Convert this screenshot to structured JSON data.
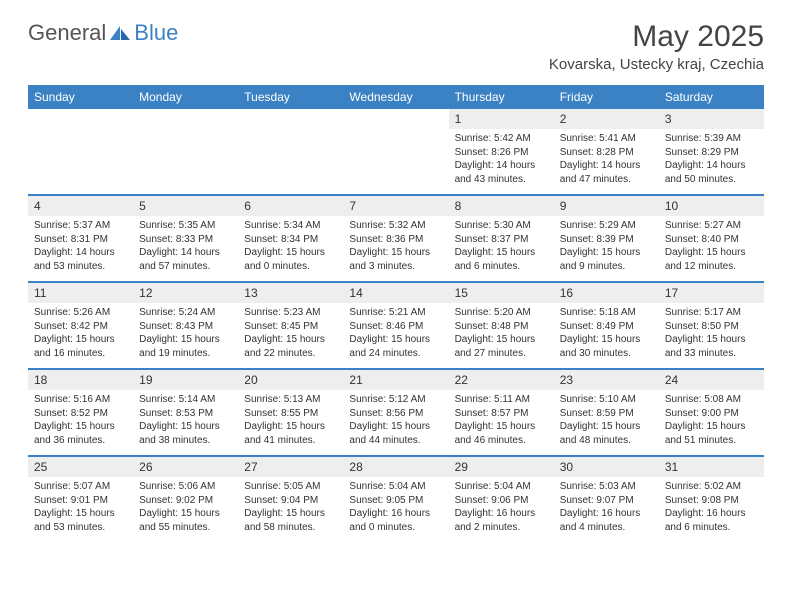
{
  "brand": {
    "part1": "General",
    "part2": "Blue"
  },
  "title": "May 2025",
  "location": "Kovarska, Ustecky kraj, Czechia",
  "colors": {
    "header_bg": "#3b82c4",
    "header_text": "#ffffff",
    "daynum_bg": "#eeeeee",
    "rule": "#3b82c4",
    "text": "#333333",
    "background": "#ffffff"
  },
  "typography": {
    "title_fontsize": 30,
    "location_fontsize": 15,
    "dayhead_fontsize": 12,
    "daynum_fontsize": 12,
    "detail_fontsize": 10
  },
  "day_headers": [
    "Sunday",
    "Monday",
    "Tuesday",
    "Wednesday",
    "Thursday",
    "Friday",
    "Saturday"
  ],
  "weeks": [
    [
      null,
      null,
      null,
      null,
      {
        "n": "1",
        "sr": "5:42 AM",
        "ss": "8:26 PM",
        "dl": "14 hours and 43 minutes."
      },
      {
        "n": "2",
        "sr": "5:41 AM",
        "ss": "8:28 PM",
        "dl": "14 hours and 47 minutes."
      },
      {
        "n": "3",
        "sr": "5:39 AM",
        "ss": "8:29 PM",
        "dl": "14 hours and 50 minutes."
      }
    ],
    [
      {
        "n": "4",
        "sr": "5:37 AM",
        "ss": "8:31 PM",
        "dl": "14 hours and 53 minutes."
      },
      {
        "n": "5",
        "sr": "5:35 AM",
        "ss": "8:33 PM",
        "dl": "14 hours and 57 minutes."
      },
      {
        "n": "6",
        "sr": "5:34 AM",
        "ss": "8:34 PM",
        "dl": "15 hours and 0 minutes."
      },
      {
        "n": "7",
        "sr": "5:32 AM",
        "ss": "8:36 PM",
        "dl": "15 hours and 3 minutes."
      },
      {
        "n": "8",
        "sr": "5:30 AM",
        "ss": "8:37 PM",
        "dl": "15 hours and 6 minutes."
      },
      {
        "n": "9",
        "sr": "5:29 AM",
        "ss": "8:39 PM",
        "dl": "15 hours and 9 minutes."
      },
      {
        "n": "10",
        "sr": "5:27 AM",
        "ss": "8:40 PM",
        "dl": "15 hours and 12 minutes."
      }
    ],
    [
      {
        "n": "11",
        "sr": "5:26 AM",
        "ss": "8:42 PM",
        "dl": "15 hours and 16 minutes."
      },
      {
        "n": "12",
        "sr": "5:24 AM",
        "ss": "8:43 PM",
        "dl": "15 hours and 19 minutes."
      },
      {
        "n": "13",
        "sr": "5:23 AM",
        "ss": "8:45 PM",
        "dl": "15 hours and 22 minutes."
      },
      {
        "n": "14",
        "sr": "5:21 AM",
        "ss": "8:46 PM",
        "dl": "15 hours and 24 minutes."
      },
      {
        "n": "15",
        "sr": "5:20 AM",
        "ss": "8:48 PM",
        "dl": "15 hours and 27 minutes."
      },
      {
        "n": "16",
        "sr": "5:18 AM",
        "ss": "8:49 PM",
        "dl": "15 hours and 30 minutes."
      },
      {
        "n": "17",
        "sr": "5:17 AM",
        "ss": "8:50 PM",
        "dl": "15 hours and 33 minutes."
      }
    ],
    [
      {
        "n": "18",
        "sr": "5:16 AM",
        "ss": "8:52 PM",
        "dl": "15 hours and 36 minutes."
      },
      {
        "n": "19",
        "sr": "5:14 AM",
        "ss": "8:53 PM",
        "dl": "15 hours and 38 minutes."
      },
      {
        "n": "20",
        "sr": "5:13 AM",
        "ss": "8:55 PM",
        "dl": "15 hours and 41 minutes."
      },
      {
        "n": "21",
        "sr": "5:12 AM",
        "ss": "8:56 PM",
        "dl": "15 hours and 44 minutes."
      },
      {
        "n": "22",
        "sr": "5:11 AM",
        "ss": "8:57 PM",
        "dl": "15 hours and 46 minutes."
      },
      {
        "n": "23",
        "sr": "5:10 AM",
        "ss": "8:59 PM",
        "dl": "15 hours and 48 minutes."
      },
      {
        "n": "24",
        "sr": "5:08 AM",
        "ss": "9:00 PM",
        "dl": "15 hours and 51 minutes."
      }
    ],
    [
      {
        "n": "25",
        "sr": "5:07 AM",
        "ss": "9:01 PM",
        "dl": "15 hours and 53 minutes."
      },
      {
        "n": "26",
        "sr": "5:06 AM",
        "ss": "9:02 PM",
        "dl": "15 hours and 55 minutes."
      },
      {
        "n": "27",
        "sr": "5:05 AM",
        "ss": "9:04 PM",
        "dl": "15 hours and 58 minutes."
      },
      {
        "n": "28",
        "sr": "5:04 AM",
        "ss": "9:05 PM",
        "dl": "16 hours and 0 minutes."
      },
      {
        "n": "29",
        "sr": "5:04 AM",
        "ss": "9:06 PM",
        "dl": "16 hours and 2 minutes."
      },
      {
        "n": "30",
        "sr": "5:03 AM",
        "ss": "9:07 PM",
        "dl": "16 hours and 4 minutes."
      },
      {
        "n": "31",
        "sr": "5:02 AM",
        "ss": "9:08 PM",
        "dl": "16 hours and 6 minutes."
      }
    ]
  ],
  "labels": {
    "sunrise": "Sunrise: ",
    "sunset": "Sunset: ",
    "daylight": "Daylight: "
  }
}
